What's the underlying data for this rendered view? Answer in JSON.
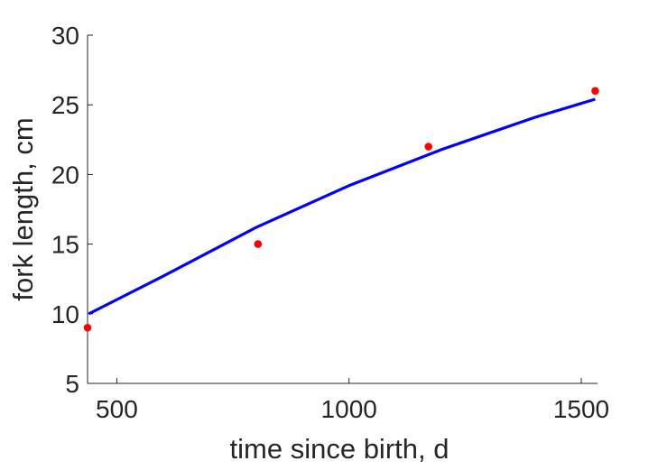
{
  "chart_data": {
    "type": "scatter",
    "xlabel": "time since birth, d",
    "ylabel": "fork length, cm",
    "xlim": [
      437,
      1535
    ],
    "ylim": [
      5,
      30
    ],
    "xticks": [
      500,
      1000,
      1500
    ],
    "yticks": [
      5,
      10,
      15,
      20,
      25,
      30
    ],
    "grid": false,
    "legend": "none",
    "series": [
      {
        "kind": "points",
        "color": "#ff0000",
        "x": [
          437,
          804,
          1171,
          1530
        ],
        "y": [
          9,
          15,
          22,
          26
        ]
      },
      {
        "kind": "line",
        "color": "#0000ff",
        "x": [
          440,
          600,
          800,
          1000,
          1200,
          1400,
          1530
        ],
        "y": [
          10.0,
          12.7,
          16.2,
          19.2,
          21.8,
          24.1,
          25.4
        ]
      }
    ]
  }
}
